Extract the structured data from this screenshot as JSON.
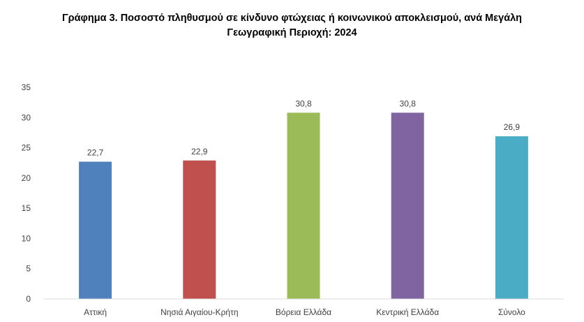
{
  "chart_data": {
    "type": "bar",
    "title_line1": "Γράφημα 3. Ποσοστό πληθυσμού σε κίνδυνο φτώχειας ή κοινωνικού αποκλεισμού, ανά  Μεγάλη",
    "title_line2": "Γεωγραφική Περιοχή: 2024",
    "categories": [
      "Αττική",
      "Νησιά Αιγαίου-Κρήτη",
      "Βόρεια Ελλάδα",
      "Κεντρική Ελλάδα",
      "Σύνολο"
    ],
    "values": [
      22.7,
      22.9,
      30.8,
      30.8,
      26.9
    ],
    "data_labels": [
      "22,7",
      "22,9",
      "30,8",
      "30,8",
      "26,9"
    ],
    "colors": [
      "#4F81BD",
      "#C0504D",
      "#9BBB59",
      "#8064A2",
      "#4BACC6"
    ],
    "yticks": [
      0,
      5,
      10,
      15,
      20,
      25,
      30,
      35
    ],
    "ylim": [
      0,
      35
    ],
    "xlabel": "",
    "ylabel": "",
    "grid": false,
    "legend": "none"
  }
}
